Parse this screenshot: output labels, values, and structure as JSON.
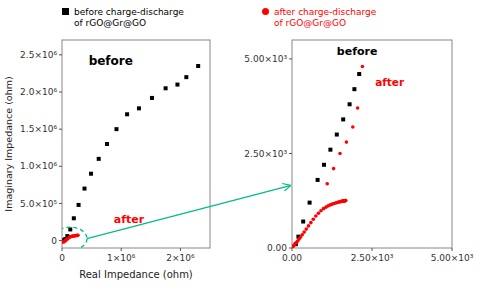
{
  "chart_data": [
    {
      "type": "scatter",
      "xlabel": "Real Impedance (ohm)",
      "ylabel": "Imaginary Impedance (ohm)",
      "xlim": [
        0,
        2500000
      ],
      "ylim": [
        -100000,
        2700000
      ],
      "xticks": [
        0,
        {
          "value": 1000000,
          "label": "1×10⁶"
        },
        {
          "value": 2000000,
          "label": "2×10⁶"
        }
      ],
      "yticks": [
        0,
        {
          "value": 500000,
          "label": "5.0×10⁵"
        },
        {
          "value": 1000000,
          "label": "1.0×10⁶"
        },
        {
          "value": 1500000,
          "label": "1.5×10⁶"
        },
        {
          "value": 2000000,
          "label": "2.0×10⁶"
        },
        {
          "value": 2500000,
          "label": "2.5×10⁶"
        }
      ],
      "grid": false,
      "legend": "top",
      "annotations": [
        {
          "text": "before",
          "color": "#000000"
        },
        {
          "text": "after",
          "color": "#ff0000"
        }
      ],
      "series": [
        {
          "name": "before charge-discharge\nof rGO@Gr@GO",
          "color": "#000000",
          "marker": "square",
          "x": [
            30000,
            55000,
            90000,
            140000,
            200000,
            280000,
            380000,
            490000,
            620000,
            760000,
            920000,
            1100000,
            1300000,
            1520000,
            1750000,
            1950000,
            2100000,
            2300000
          ],
          "values": [
            5000,
            20000,
            60000,
            150000,
            300000,
            480000,
            700000,
            900000,
            1100000,
            1300000,
            1500000,
            1700000,
            1780000,
            1920000,
            2050000,
            2100000,
            2200000,
            2350000
          ]
        },
        {
          "name": "after charge-discharge\nof rGO@Gr@GO",
          "color": "#ff0000",
          "marker": "circle",
          "x": [
            5000,
            10000,
            20000,
            35000,
            50000,
            65000,
            80000,
            95000,
            110000,
            125000,
            140000,
            155000,
            170000,
            185000,
            200000,
            215000,
            230000,
            245000,
            260000,
            270000
          ],
          "values": [
            -10000,
            -15000,
            -20000,
            -15000,
            -5000,
            5000,
            15000,
            25000,
            35000,
            45000,
            50000,
            55000,
            58000,
            60000,
            62000,
            64000,
            66000,
            68000,
            70000,
            72000
          ]
        }
      ]
    },
    {
      "type": "scatter",
      "xlim": [
        0,
        5000
      ],
      "ylim": [
        0,
        5500
      ],
      "xticks": [
        {
          "value": 0,
          "label": "0.00"
        },
        {
          "value": 2500,
          "label": "2.50×10³"
        },
        {
          "value": 5000,
          "label": "5.00×10³"
        }
      ],
      "yticks": [
        {
          "value": 0,
          "label": "0.00"
        },
        {
          "value": 2500,
          "label": "2.50×10³"
        },
        {
          "value": 5000,
          "label": "5.00×10³"
        }
      ],
      "grid": false,
      "annotations": [
        {
          "text": "before",
          "color": "#000000"
        },
        {
          "text": "after",
          "color": "#ff0000"
        }
      ],
      "series": [
        {
          "color": "#000000",
          "marker": "square",
          "x": [
            120,
            200,
            350,
            550,
            800,
            1000,
            1200,
            1400,
            1600,
            1800,
            1950,
            2100
          ],
          "values": [
            100,
            300,
            700,
            1200,
            1800,
            2200,
            2600,
            3000,
            3400,
            3800,
            4200,
            4600
          ]
        },
        {
          "color": "#ff0000",
          "marker": "circle",
          "x": [
            20,
            40,
            65,
            95,
            130,
            170,
            215,
            265,
            320,
            380,
            445,
            515,
            590,
            665,
            745,
            825,
            905,
            985,
            1060,
            1130,
            1195,
            1255,
            1310,
            1360,
            1405,
            1445,
            1480,
            1510,
            1535,
            1555,
            1575,
            1590,
            1600,
            1615,
            1625,
            1635,
            1645,
            1660,
            1670,
            1680
          ],
          "values": [
            30,
            50,
            75,
            105,
            140,
            180,
            230,
            285,
            350,
            420,
            500,
            585,
            670,
            760,
            845,
            920,
            985,
            1040,
            1080,
            1115,
            1140,
            1160,
            1175,
            1190,
            1200,
            1210,
            1220,
            1225,
            1230,
            1235,
            1238,
            1240,
            1242,
            1244,
            1246,
            1248,
            1250,
            1252,
            1254,
            1256
          ]
        },
        {
          "color": "#ff0000",
          "marker": "circle",
          "x": [
            1100,
            1300,
            1500,
            1700,
            1900,
            2050,
            2200
          ],
          "values": [
            1700,
            2100,
            2500,
            2800,
            3200,
            3700,
            4800
          ]
        }
      ]
    }
  ]
}
